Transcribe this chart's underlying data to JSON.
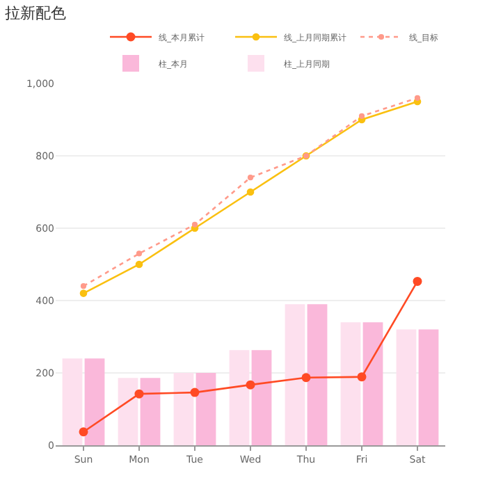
{
  "chart_data": {
    "type": "bar",
    "title": "拉新配色",
    "categories": [
      "Sun",
      "Mon",
      "Tue",
      "Wed",
      "Thu",
      "Fri",
      "Sat"
    ],
    "series": [
      {
        "name": "线_本月累计",
        "type": "line",
        "color": "#ff4a24",
        "line_style": "solid",
        "values": [
          37,
          142,
          146,
          167,
          187,
          189,
          453
        ]
      },
      {
        "name": "线_上月同期累计",
        "type": "line",
        "color": "#fac010",
        "line_style": "solid",
        "values": [
          420,
          500,
          600,
          700,
          800,
          900,
          950
        ]
      },
      {
        "name": "线_目标",
        "type": "line",
        "color": "#ff9a8a",
        "line_style": "dotted",
        "values": [
          440,
          530,
          610,
          740,
          800,
          910,
          960
        ]
      },
      {
        "name": "柱_本月",
        "color": "#fab8da",
        "values": [
          240,
          186,
          200,
          263,
          390,
          340,
          320
        ]
      },
      {
        "name": "柱_上月同期",
        "color": "#fde0ee",
        "values": [
          240,
          186,
          200,
          263,
          390,
          340,
          320
        ]
      }
    ],
    "ylim": [
      0,
      1000
    ],
    "yticks": [
      0,
      200,
      400,
      600,
      800,
      {
        "value": 1000,
        "label": "1,000"
      }
    ],
    "grid": "y",
    "legend": "top",
    "marker": "circle"
  }
}
